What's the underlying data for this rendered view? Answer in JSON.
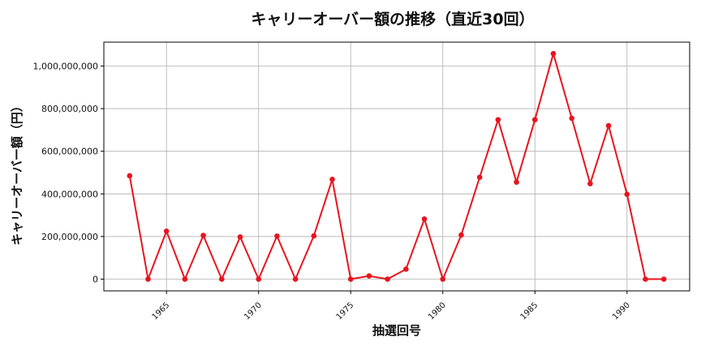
{
  "chart_data": {
    "type": "line",
    "title": "キャリーオーバー額の推移（直近30回）",
    "xlabel": "抽選回号",
    "ylabel": "キャリーオーバー額（円）",
    "x": [
      1963,
      1964,
      1965,
      1966,
      1967,
      1968,
      1969,
      1970,
      1971,
      1972,
      1973,
      1974,
      1975,
      1976,
      1977,
      1978,
      1979,
      1980,
      1981,
      1982,
      1983,
      1984,
      1985,
      1986,
      1987,
      1988,
      1989,
      1990,
      1991,
      1992
    ],
    "series": [
      {
        "values": [
          485000000,
          0,
          225000000,
          0,
          205000000,
          0,
          198000000,
          0,
          202000000,
          0,
          203000000,
          468000000,
          0,
          15000000,
          0,
          47000000,
          282000000,
          0,
          207000000,
          478000000,
          748000000,
          455000000,
          748000000,
          1058000000,
          755000000,
          448000000,
          720000000,
          398000000,
          0,
          0
        ]
      }
    ],
    "xticks": [
      1965,
      1970,
      1975,
      1980,
      1985,
      1990
    ],
    "yticks": [
      0,
      200000000,
      400000000,
      600000000,
      800000000,
      1000000000
    ],
    "xlim": [
      1961.6,
      1993.4
    ],
    "ylim": [
      -55000000,
      1112000000
    ],
    "grid": true,
    "line_color": "#e8141e",
    "marker_color": "#e8141e"
  }
}
